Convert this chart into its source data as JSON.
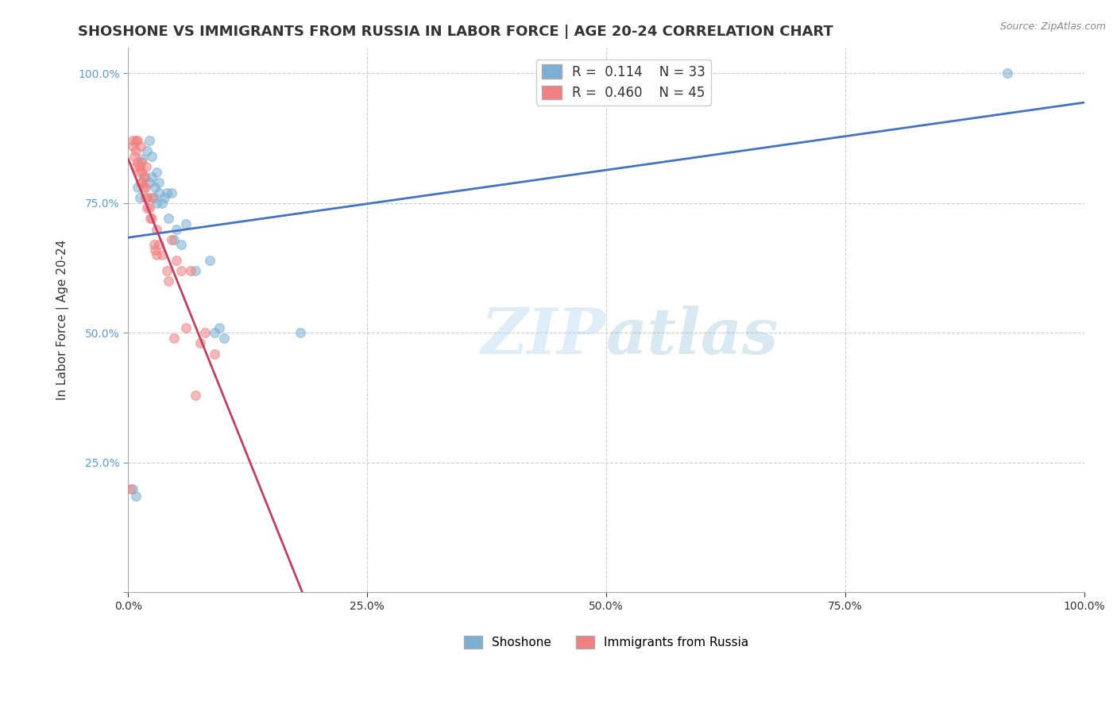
{
  "title": "SHOSHONE VS IMMIGRANTS FROM RUSSIA IN LABOR FORCE | AGE 20-24 CORRELATION CHART",
  "source_text": "Source: ZipAtlas.com",
  "ylabel": "In Labor Force | Age 20-24",
  "watermark_zip": "ZIP",
  "watermark_atlas": "atlas",
  "legend_entries": [
    {
      "label": "R =  0.114    N = 33",
      "color": "#a8c8e8"
    },
    {
      "label": "R =  0.460    N = 45",
      "color": "#f4b8c8"
    }
  ],
  "bottom_legend": [
    {
      "label": "Shoshone",
      "color": "#a8c8e8"
    },
    {
      "label": "Immigrants from Russia",
      "color": "#f4b8c8"
    }
  ],
  "shoshone_x": [
    0.005,
    0.008,
    0.01,
    0.012,
    0.015,
    0.017,
    0.02,
    0.022,
    0.022,
    0.025,
    0.025,
    0.027,
    0.028,
    0.03,
    0.03,
    0.032,
    0.032,
    0.035,
    0.038,
    0.04,
    0.042,
    0.045,
    0.048,
    0.05,
    0.055,
    0.06,
    0.07,
    0.085,
    0.09,
    0.095,
    0.1,
    0.18,
    0.92
  ],
  "shoshone_y": [
    0.2,
    0.185,
    0.78,
    0.76,
    0.835,
    0.8,
    0.85,
    0.87,
    0.79,
    0.84,
    0.8,
    0.76,
    0.78,
    0.81,
    0.75,
    0.77,
    0.79,
    0.75,
    0.76,
    0.77,
    0.72,
    0.77,
    0.68,
    0.7,
    0.67,
    0.71,
    0.62,
    0.64,
    0.5,
    0.51,
    0.49,
    0.5,
    1.0
  ],
  "russia_x": [
    0.002,
    0.005,
    0.005,
    0.006,
    0.007,
    0.008,
    0.008,
    0.01,
    0.01,
    0.012,
    0.012,
    0.013,
    0.013,
    0.014,
    0.015,
    0.015,
    0.016,
    0.017,
    0.018,
    0.018,
    0.019,
    0.02,
    0.02,
    0.022,
    0.023,
    0.025,
    0.025,
    0.027,
    0.028,
    0.03,
    0.03,
    0.032,
    0.035,
    0.04,
    0.042,
    0.045,
    0.048,
    0.05,
    0.055,
    0.06,
    0.065,
    0.07,
    0.075,
    0.08,
    0.09
  ],
  "russia_y": [
    0.2,
    0.87,
    0.86,
    0.84,
    0.82,
    0.85,
    0.87,
    0.83,
    0.87,
    0.81,
    0.82,
    0.79,
    0.86,
    0.83,
    0.79,
    0.81,
    0.78,
    0.8,
    0.78,
    0.76,
    0.82,
    0.76,
    0.74,
    0.74,
    0.72,
    0.72,
    0.76,
    0.67,
    0.66,
    0.65,
    0.7,
    0.67,
    0.65,
    0.62,
    0.6,
    0.68,
    0.49,
    0.64,
    0.62,
    0.51,
    0.62,
    0.38,
    0.48,
    0.5,
    0.46
  ],
  "blue_color": "#7bafd4",
  "pink_color": "#f08080",
  "blue_line_color": "#4472c4",
  "pink_line_color": "#c04060",
  "xlim": [
    0.0,
    1.0
  ],
  "ylim": [
    0.0,
    1.05
  ],
  "yticks": [
    0.0,
    0.25,
    0.5,
    0.75,
    1.0
  ],
  "ytick_labels": [
    "",
    "25.0%",
    "50.0%",
    "75.0%",
    "100.0%"
  ],
  "xticks": [
    0.0,
    0.25,
    0.5,
    0.75,
    1.0
  ],
  "xtick_labels": [
    "0.0%",
    "25.0%",
    "50.0%",
    "75.0%",
    "100.0%"
  ],
  "title_fontsize": 13,
  "axis_label_fontsize": 11,
  "tick_fontsize": 10,
  "marker_size": 70,
  "marker_alpha": 0.55
}
